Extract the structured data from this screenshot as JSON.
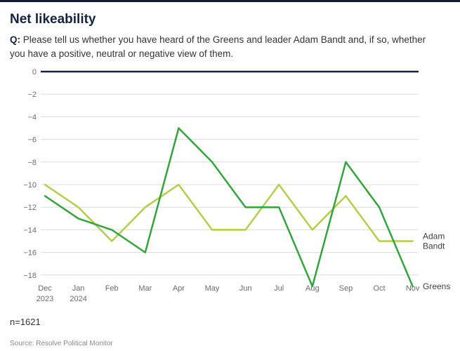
{
  "header": {
    "title": "Net likeability",
    "question_prefix": "Q:",
    "question_text": " Please tell us whether you have heard of the Greens and leader Adam Bandt and, if so, whether you have a positive, neutral or negative view of them."
  },
  "chart_data": {
    "type": "line",
    "title": "Net likeability",
    "categories": [
      "Dec",
      "Jan",
      "Feb",
      "Mar",
      "Apr",
      "May",
      "Jun",
      "Jul",
      "Aug",
      "Sep",
      "Oct",
      "Nov"
    ],
    "category_subs": [
      "2023",
      "2024",
      "",
      "",
      "",
      "",
      "",
      "",
      "",
      "",
      "",
      ""
    ],
    "series": [
      {
        "name": "Adam Bandt",
        "label_lines": [
          "Adam",
          "Bandt"
        ],
        "color": "#b3cc4a",
        "values": [
          -10,
          -12,
          -15,
          -12,
          -10,
          -14,
          -14,
          -10,
          -14,
          -11,
          -15,
          -15
        ]
      },
      {
        "name": "Greens",
        "label_lines": [
          "Greens"
        ],
        "color": "#36a23d",
        "values": [
          -11,
          -13,
          -14,
          -16,
          -5,
          -8,
          -12,
          -12,
          -19,
          -8,
          -12,
          -19
        ]
      }
    ],
    "ylim": [
      -19.5,
      0
    ],
    "yticks": [
      0,
      -2,
      -4,
      -6,
      -8,
      -10,
      -12,
      -14,
      -16,
      -18
    ],
    "grid": true,
    "zero_line_color": "#15233f",
    "gridline_color": "#dcdcdc",
    "tick_label_color": "#6b6b6b",
    "legend_position": "end-of-line"
  },
  "footer": {
    "sample": "n=1621",
    "source": "Source: Resolve Political Monitor"
  }
}
